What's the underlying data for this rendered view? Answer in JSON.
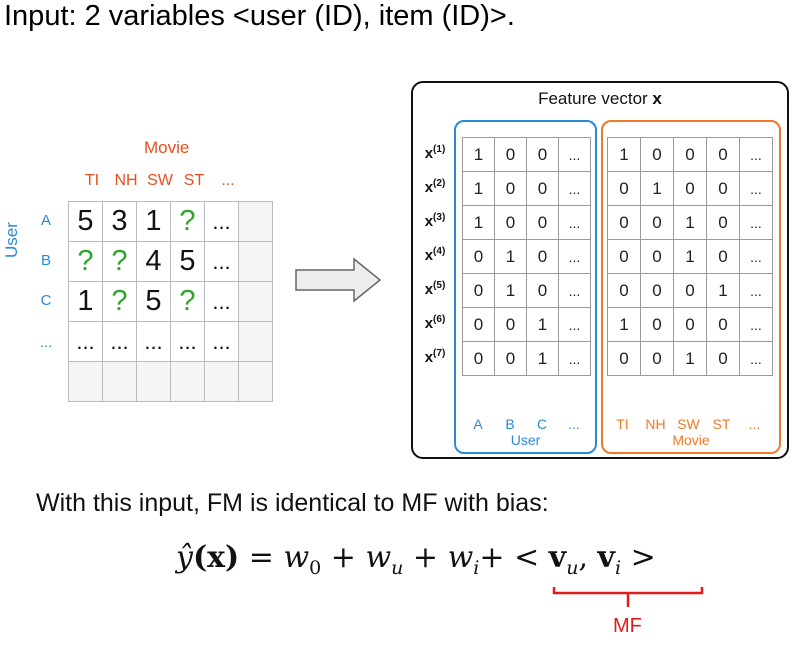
{
  "title": "Input: 2 variables <user (ID), item (ID)>.",
  "rating_matrix": {
    "movie_label": "Movie",
    "user_label": "User",
    "columns": [
      "TI",
      "NH",
      "SW",
      "ST",
      "..."
    ],
    "rows": [
      "A",
      "B",
      "C",
      "..."
    ],
    "cells": [
      [
        "5",
        "3",
        "1",
        "?",
        "..."
      ],
      [
        "?",
        "?",
        "4",
        "5",
        "..."
      ],
      [
        "1",
        "?",
        "5",
        "?",
        "..."
      ],
      [
        "...",
        "...",
        "...",
        "...",
        "..."
      ]
    ]
  },
  "feature_vector": {
    "title_prefix": "Feature vector ",
    "title_bold": "x",
    "row_label_base": "x",
    "row_labels": [
      "(1)",
      "(2)",
      "(3)",
      "(4)",
      "(5)",
      "(6)",
      "(7)"
    ],
    "user_rows": [
      [
        "1",
        "0",
        "0",
        "..."
      ],
      [
        "1",
        "0",
        "0",
        "..."
      ],
      [
        "1",
        "0",
        "0",
        "..."
      ],
      [
        "0",
        "1",
        "0",
        "..."
      ],
      [
        "0",
        "1",
        "0",
        "..."
      ],
      [
        "0",
        "0",
        "1",
        "..."
      ],
      [
        "0",
        "0",
        "1",
        "..."
      ]
    ],
    "movie_rows": [
      [
        "1",
        "0",
        "0",
        "0",
        "..."
      ],
      [
        "0",
        "1",
        "0",
        "0",
        "..."
      ],
      [
        "0",
        "0",
        "1",
        "0",
        "..."
      ],
      [
        "0",
        "0",
        "1",
        "0",
        "..."
      ],
      [
        "0",
        "0",
        "0",
        "1",
        "..."
      ],
      [
        "1",
        "0",
        "0",
        "0",
        "..."
      ],
      [
        "0",
        "0",
        "1",
        "0",
        "..."
      ]
    ],
    "user_cols": [
      "A",
      "B",
      "C",
      "..."
    ],
    "movie_cols": [
      "TI",
      "NH",
      "SW",
      "ST",
      "..."
    ],
    "user_group_label": "User",
    "movie_group_label": "Movie"
  },
  "bottom_text": "With this input, FM is identical to MF with bias:",
  "formula": {
    "lhs": "ŷ",
    "arg": "(x)",
    "eq": " = ",
    "w": "w",
    "w0_sub": "0",
    "plus": " + ",
    "wu_sub": "u",
    "wi_sub": "i",
    "plus_tight": "+ ",
    "lt": "< ",
    "v": "v",
    "comma": ", ",
    "gt": " >"
  },
  "mf_label": "MF",
  "colors": {
    "movie": "#e8501e",
    "user": "#2a8ad8",
    "unknown": "#2fa52f",
    "user_box": "#2a8ad8",
    "movie_box": "#f07a28",
    "mf": "#e21c1c"
  }
}
